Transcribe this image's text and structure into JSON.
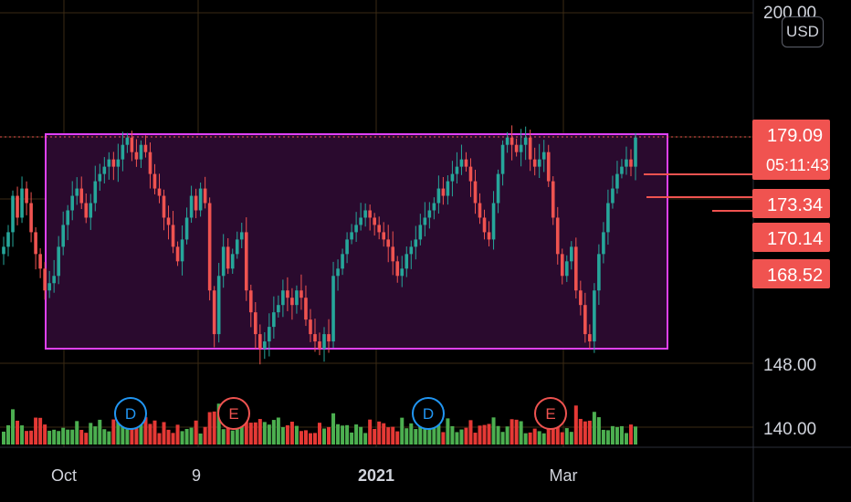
{
  "chart_data": {
    "type": "candlestick",
    "currency": "USD",
    "price_axis_labels": [
      "200.00",
      "148.00",
      "140.00"
    ],
    "time_axis_labels": [
      "Oct",
      "9",
      "2021",
      "Mar"
    ],
    "price_tags": [
      {
        "value": "179.09",
        "sub": "05:11:43",
        "color": "#f05350"
      },
      {
        "value": "173.34",
        "color": "#f05350"
      },
      {
        "value": "170.14",
        "color": "#f05350"
      },
      {
        "value": "168.52",
        "color": "#f05350"
      }
    ],
    "events": [
      {
        "letter": "D",
        "color": "#2196f3"
      },
      {
        "letter": "E",
        "color": "#ef5350"
      },
      {
        "letter": "D",
        "color": "#2196f3"
      },
      {
        "letter": "E",
        "color": "#ef5350"
      }
    ],
    "rectangle": {
      "top_price": 179.1,
      "bottom_price": 149.2,
      "border_color": "#e040fb",
      "fill_color": "#2a0a2e"
    },
    "closes": [
      164,
      166,
      171,
      168,
      172,
      170,
      166,
      163,
      161,
      158,
      159,
      160,
      164,
      167,
      169,
      171,
      172,
      170,
      168,
      170,
      173,
      174,
      175,
      176,
      175,
      176,
      178,
      179,
      177,
      176,
      178,
      177,
      174,
      172,
      171,
      168,
      167,
      164,
      162,
      165,
      168,
      171,
      169,
      172,
      170,
      158,
      152,
      160,
      164,
      161,
      163,
      165,
      166,
      158,
      155,
      152,
      150,
      151,
      153,
      155,
      156,
      158,
      157,
      156,
      158,
      157,
      154,
      152,
      151,
      150,
      152,
      151,
      160,
      161,
      163,
      165,
      166,
      167,
      168,
      169,
      168,
      167,
      166,
      165,
      164,
      162,
      160,
      161,
      163,
      164,
      165,
      167,
      168,
      169,
      170,
      172,
      171,
      173,
      174,
      175,
      176,
      175,
      173,
      170,
      168,
      166,
      165,
      170,
      174,
      178,
      179,
      178,
      177,
      178,
      179,
      176,
      175,
      176,
      177,
      173,
      168,
      163,
      160,
      162,
      164,
      158,
      156,
      152,
      151,
      158,
      163,
      166,
      170,
      172,
      174,
      175,
      176,
      175,
      179
    ],
    "volume_colors_note": "green up / red down"
  }
}
